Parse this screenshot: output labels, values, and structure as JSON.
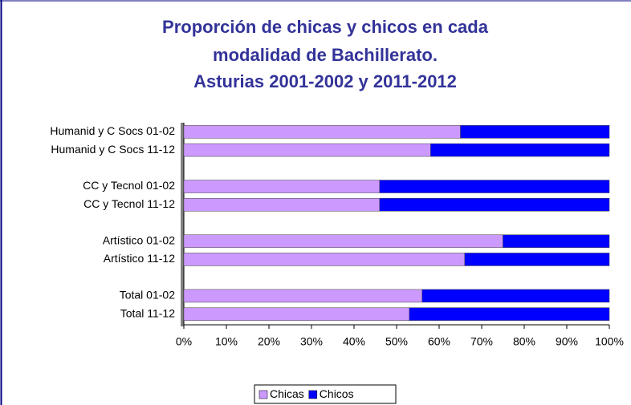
{
  "chart_data": {
    "type": "bar",
    "orientation": "horizontal",
    "stacked": "percent",
    "title": [
      "Proporción de chicas y chicos en cada",
      "modalidad de Bachillerato.",
      "Asturias  2001-2002 y 2011-2012"
    ],
    "categories": [
      "Humanid y C Socs 01-02",
      "Humanid y C Socs 11-12",
      null,
      "CC y Tecnol 01-02",
      "CC y Tecnol 11-12",
      null,
      "Artístico 01-02",
      "Artístico 11-12",
      null,
      "Total 01-02",
      "Total 11-12"
    ],
    "series": [
      {
        "name": "Chicas",
        "color": "#cc99ff",
        "values": [
          65,
          58,
          null,
          46,
          46,
          null,
          75,
          66,
          null,
          56,
          53
        ]
      },
      {
        "name": "Chicos",
        "color": "#0000ff",
        "values": [
          35,
          42,
          null,
          54,
          54,
          null,
          25,
          34,
          null,
          44,
          47
        ]
      }
    ],
    "xlim": [
      0,
      100
    ],
    "xticks": [
      {
        "value": 0,
        "label": "0%"
      },
      {
        "value": 10,
        "label": "10%"
      },
      {
        "value": 20,
        "label": "20%"
      },
      {
        "value": 30,
        "label": "30%"
      },
      {
        "value": 40,
        "label": "40%"
      },
      {
        "value": 50,
        "label": "50%"
      },
      {
        "value": 60,
        "label": "60%"
      },
      {
        "value": 70,
        "label": "70%"
      },
      {
        "value": 80,
        "label": "80%"
      },
      {
        "value": 90,
        "label": "90%"
      },
      {
        "value": 100,
        "label": "100%"
      }
    ],
    "legend": "bottom"
  }
}
